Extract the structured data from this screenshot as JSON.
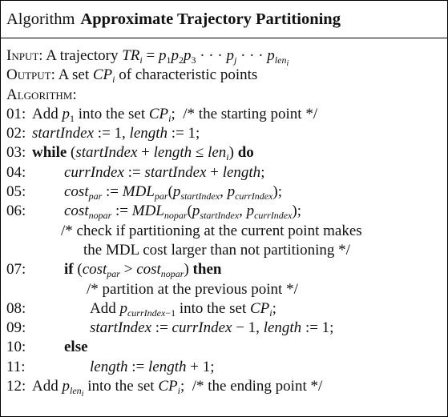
{
  "algorithm": {
    "keyword": "Algorithm",
    "name": "Approximate Trajectory Partitioning"
  },
  "io": {
    "input_label": "Input:",
    "input_text": "A trajectory TR_i = p_1 p_2 p_3 · · · p_j · · · p_len_i",
    "output_label": "Output:",
    "output_text": "A set CP_i of characteristic points",
    "algorithm_label": "Algorithm:"
  },
  "lines": [
    {
      "num": "01:",
      "text": "Add p_1 into the set CP_i;  /* the starting point */"
    },
    {
      "num": "02:",
      "text": "startIndex := 1, length := 1;"
    },
    {
      "num": "03:",
      "text": "while (startIndex + length ≤ len_i) do"
    },
    {
      "num": "04:",
      "text": "currIndex := startIndex + length;"
    },
    {
      "num": "05:",
      "text": "cost_par := MDL_par(p_startIndex, p_currIndex);"
    },
    {
      "num": "06:",
      "text": "cost_nopar := MDL_nopar(p_startIndex, p_currIndex);"
    },
    {
      "num": "",
      "text": "/* check if partitioning at the current point makes"
    },
    {
      "num": "",
      "text": "the MDL cost larger than not partitioning */"
    },
    {
      "num": "07:",
      "text": "if (cost_par > cost_nopar) then"
    },
    {
      "num": "",
      "text": "/* partition at the previous point */"
    },
    {
      "num": "08:",
      "text": "Add p_currIndex−1 into the set CP_i;"
    },
    {
      "num": "09:",
      "text": "startIndex := currIndex − 1, length := 1;"
    },
    {
      "num": "10:",
      "text": "else"
    },
    {
      "num": "11:",
      "text": "length := length + 1;"
    },
    {
      "num": "12:",
      "text": "Add p_len_i into the set CP_i;  /* the ending point */"
    }
  ]
}
